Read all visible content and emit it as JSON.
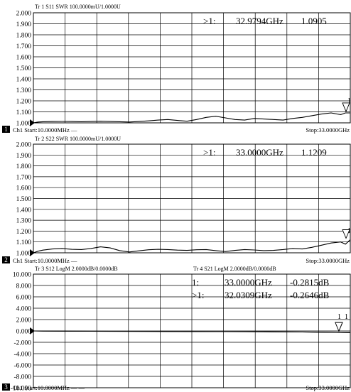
{
  "colors": {
    "background": "#ffffff",
    "foreground": "#000000",
    "channel_badge_bg": "#000000",
    "channel_badge_fg": "#ffffff"
  },
  "chart_data": [
    {
      "type": "line",
      "trace_header": "Tr 1  S11  SWR 100.0000mU/1.0000U",
      "channel_badge": "1",
      "footer_left": "Ch1  Start:10.0000MHz  —",
      "footer_right": "Stop:33.0000GHz",
      "y_ticks": [
        "2.000",
        "1.900",
        "1.800",
        "1.700",
        "1.600",
        "1.500",
        "1.400",
        "1.300",
        "1.200",
        "1.100",
        "1.000"
      ],
      "ylim": [
        1.0,
        2.0
      ],
      "reference_level": 1.0,
      "reference_arrow_label": "1",
      "x_unit": "GHz",
      "xlim": [
        0.01,
        33.0
      ],
      "marker_readouts": [
        {
          "prefix": ">1:",
          "freq": "32.9794GHz",
          "value": "1.0905"
        }
      ],
      "marker_flag_labels": [
        "1"
      ],
      "markers": [
        {
          "x": 32.98,
          "y": 1.0905
        }
      ],
      "series": [
        {
          "x": [
            0.01,
            0.5,
            1,
            2,
            3,
            4,
            5,
            6,
            7,
            8,
            9,
            10,
            11,
            12,
            13,
            14,
            15,
            16,
            17,
            18,
            19,
            20,
            21,
            22,
            23,
            24,
            25,
            26,
            27,
            28,
            29,
            30,
            31,
            32,
            32.5,
            33
          ],
          "y": [
            1.0,
            1.008,
            1.01,
            1.012,
            1.013,
            1.012,
            1.01,
            1.012,
            1.015,
            1.012,
            1.01,
            1.008,
            1.012,
            1.018,
            1.025,
            1.03,
            1.022,
            1.015,
            1.03,
            1.05,
            1.06,
            1.045,
            1.03,
            1.025,
            1.04,
            1.035,
            1.03,
            1.025,
            1.04,
            1.05,
            1.065,
            1.08,
            1.09,
            1.075,
            1.09,
            1.0905
          ]
        }
      ]
    },
    {
      "type": "line",
      "trace_header": "Tr 2  S22  SWR 100.0000mU/1.0000U",
      "channel_badge": "2",
      "footer_left": "Ch1  Start:10.0000MHz  —",
      "footer_right": "Stop:33.0000GHz",
      "y_ticks": [
        "2.000",
        "1.900",
        "1.800",
        "1.700",
        "1.600",
        "1.500",
        "1.400",
        "1.300",
        "1.200",
        "1.100",
        "1.000"
      ],
      "ylim": [
        1.0,
        2.0
      ],
      "reference_level": 1.0,
      "reference_arrow_label": "1",
      "x_unit": "GHz",
      "xlim": [
        0.01,
        33.0
      ],
      "marker_readouts": [
        {
          "prefix": ">1:",
          "freq": "33.0000GHz",
          "value": "1.1209"
        }
      ],
      "marker_flag_labels": [],
      "markers": [
        {
          "x": 33.0,
          "y": 1.1209
        }
      ],
      "series": [
        {
          "x": [
            0.01,
            0.5,
            1,
            2,
            3,
            4,
            5,
            6,
            7,
            8,
            9,
            10,
            11,
            12,
            13,
            14,
            15,
            16,
            17,
            18,
            19,
            20,
            21,
            22,
            23,
            24,
            25,
            26,
            27,
            28,
            29,
            30,
            31,
            32,
            32.5,
            33
          ],
          "y": [
            1.0,
            1.015,
            1.025,
            1.035,
            1.04,
            1.032,
            1.03,
            1.04,
            1.055,
            1.045,
            1.02,
            1.008,
            1.018,
            1.028,
            1.032,
            1.03,
            1.025,
            1.022,
            1.028,
            1.03,
            1.02,
            1.012,
            1.022,
            1.03,
            1.026,
            1.02,
            1.022,
            1.03,
            1.04,
            1.035,
            1.05,
            1.07,
            1.09,
            1.1,
            1.08,
            1.1209
          ]
        }
      ]
    },
    {
      "type": "line",
      "trace_header": "Tr 3  S12  LogM 2.0000dB/0.0000dB",
      "trace_header_2": "Tr 4  S21  LogM 2.0000dB/0.0000dB",
      "channel_badge": "3",
      "footer_left": "Ch1  Start:10.0000MHz  — —",
      "footer_right": "Stop:33.0000GHz",
      "y_ticks": [
        "10.000",
        "8.000",
        "6.000",
        "4.000",
        "2.000",
        "0.000",
        "-2.000",
        "-4.000",
        "-6.000",
        "-8.000",
        "-10.000"
      ],
      "ylim": [
        -10.0,
        10.0
      ],
      "reference_level": 0.0,
      "x_unit": "GHz",
      "xlim": [
        0.01,
        33.0
      ],
      "marker_readouts": [
        {
          "prefix": "1:",
          "freq": "33.0000GHz",
          "value": "-0.2815dB"
        },
        {
          "prefix": ">1:",
          "freq": "32.0309GHz",
          "value": "-0.2646dB"
        }
      ],
      "marker_flag_labels": [
        "1",
        "1"
      ],
      "markers": [
        {
          "x": 33.0,
          "y": -0.2815
        },
        {
          "x": 32.03,
          "y": -0.2646
        }
      ],
      "series": [
        {
          "x": [
            0.01,
            1,
            2,
            4,
            6,
            8,
            10,
            12,
            14,
            16,
            18,
            20,
            22,
            24,
            26,
            28,
            30,
            31,
            32,
            33
          ],
          "y": [
            0.0,
            -0.02,
            -0.03,
            -0.04,
            -0.05,
            -0.06,
            -0.07,
            -0.08,
            -0.09,
            -0.1,
            -0.11,
            -0.12,
            -0.13,
            -0.14,
            -0.16,
            -0.18,
            -0.21,
            -0.23,
            -0.26,
            -0.28
          ]
        },
        {
          "x": [
            0.01,
            1,
            2,
            4,
            6,
            8,
            10,
            12,
            14,
            16,
            18,
            20,
            22,
            24,
            26,
            28,
            30,
            31,
            32,
            33
          ],
          "y": [
            0.0,
            -0.03,
            -0.04,
            -0.05,
            -0.06,
            -0.07,
            -0.08,
            -0.09,
            -0.1,
            -0.11,
            -0.12,
            -0.13,
            -0.14,
            -0.15,
            -0.17,
            -0.19,
            -0.22,
            -0.24,
            -0.265,
            -0.2815
          ]
        }
      ]
    }
  ]
}
